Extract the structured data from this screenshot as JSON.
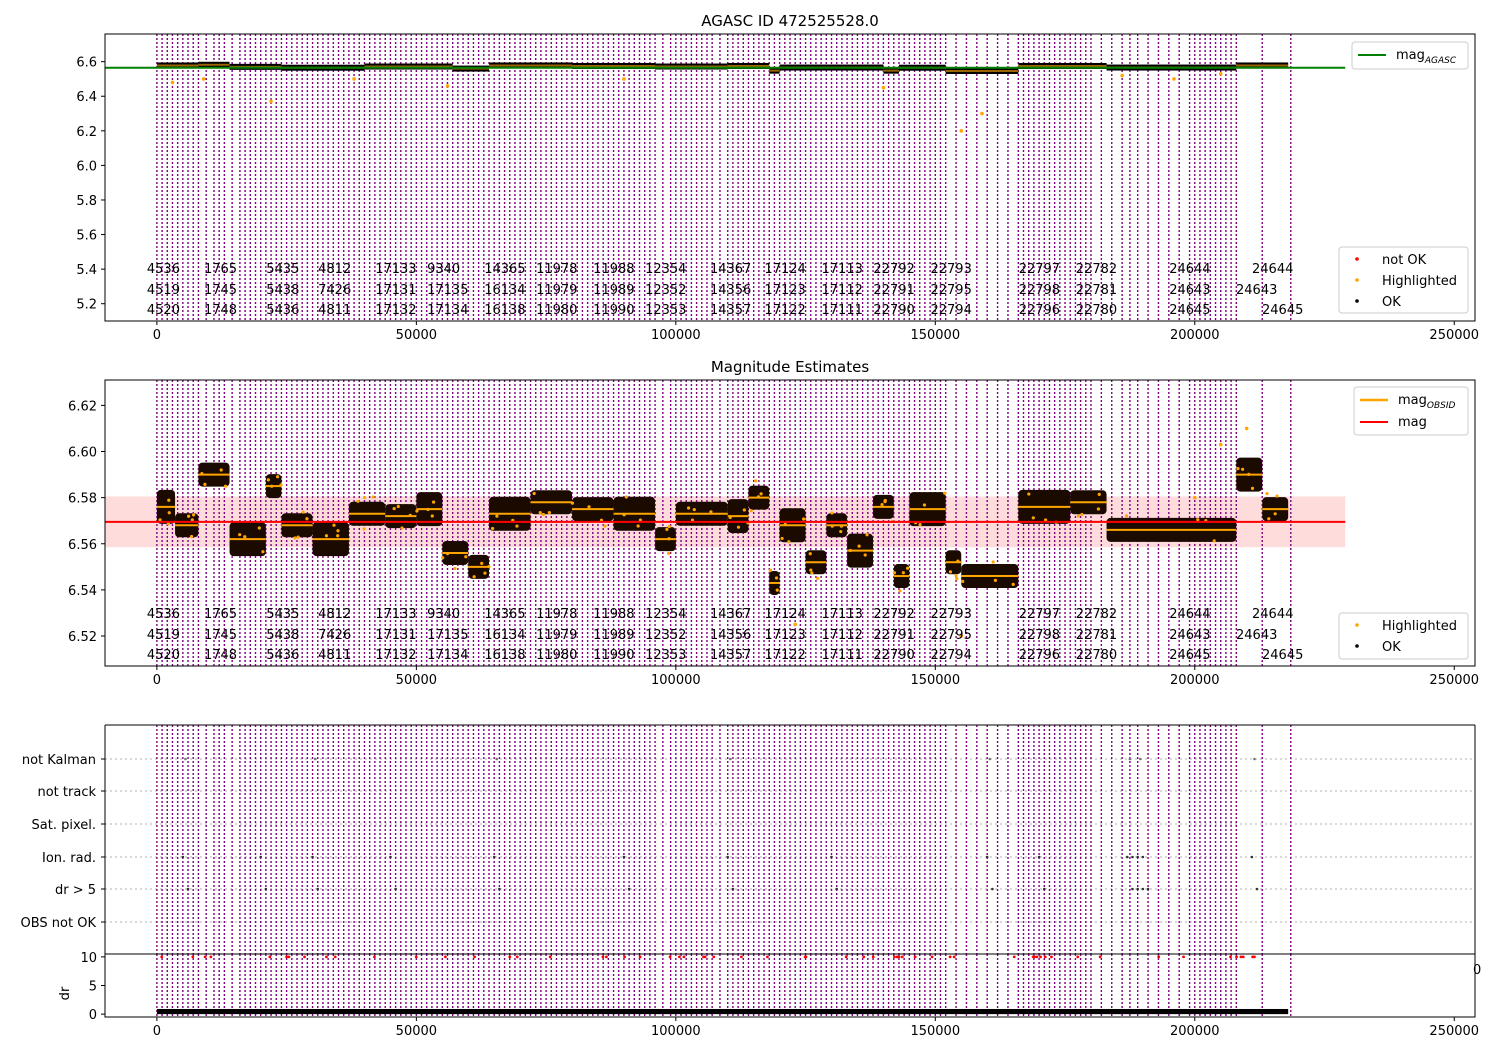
{
  "chart_data": [
    {
      "type": "scatter",
      "title": "AGASC ID 472525528.0",
      "xlim": [
        -10000,
        254000
      ],
      "ylim": [
        5.1,
        6.76
      ],
      "xticks": [
        0,
        50000,
        100000,
        150000,
        200000,
        250000
      ],
      "xtick_labels": [
        "0",
        "50000",
        "100000",
        "150000",
        "200000",
        "250000"
      ],
      "yticks": [
        5.2,
        5.4,
        5.6,
        5.8,
        6.0,
        6.2,
        6.4,
        6.6
      ],
      "ytick_labels": [
        "5.2",
        "5.4",
        "5.6",
        "5.8",
        "6.0",
        "6.2",
        "6.4",
        "6.6"
      ],
      "hline": {
        "name": "mag_AGASC",
        "y": 6.565,
        "x_range": [
          -10000,
          229000
        ],
        "color": "#008000"
      },
      "series": [
        {
          "name": "OK",
          "color": "#000000",
          "segments": [
            [
              0,
              8000,
              6.578
            ],
            [
              8000,
              14000,
              6.582
            ],
            [
              14000,
              24000,
              6.57
            ],
            [
              24000,
              40000,
              6.565
            ],
            [
              40000,
              57000,
              6.572
            ],
            [
              57000,
              64000,
              6.56
            ],
            [
              64000,
              80000,
              6.578
            ],
            [
              80000,
              96000,
              6.575
            ],
            [
              96000,
              110000,
              6.572
            ],
            [
              110000,
              118000,
              6.575
            ],
            [
              118000,
              120000,
              6.548
            ],
            [
              120000,
              140000,
              6.566
            ],
            [
              140000,
              143000,
              6.548
            ],
            [
              143000,
              152000,
              6.565
            ],
            [
              152000,
              166000,
              6.546
            ],
            [
              166000,
              183000,
              6.575
            ],
            [
              183000,
              208000,
              6.566
            ],
            [
              208000,
              218000,
              6.578
            ]
          ]
        },
        {
          "name": "Highlighted",
          "color": "#ffa500",
          "scatter": [
            [
              3000,
              6.48
            ],
            [
              9000,
              6.5
            ],
            [
              22000,
              6.37
            ],
            [
              38000,
              6.5
            ],
            [
              56000,
              6.46
            ],
            [
              90000,
              6.5
            ],
            [
              140000,
              6.45
            ],
            [
              155000,
              6.2
            ],
            [
              159000,
              6.3
            ],
            [
              186000,
              6.52
            ],
            [
              196000,
              6.5
            ],
            [
              205000,
              6.53
            ]
          ]
        },
        {
          "name": "not OK",
          "color": "#ff0000",
          "scatter": []
        }
      ],
      "obsid_labels": {
        "row1": [
          "4536",
          "1765",
          "5435",
          "4812",
          "17133",
          "9340",
          "14365",
          "11978",
          "11988",
          "12354",
          "14367",
          "17124",
          "17113",
          "22792",
          "22793",
          "22797",
          "22782",
          "24644"
        ],
        "row2": [
          "4519",
          "1745",
          "5438",
          "7426",
          "17131",
          "17135",
          "16134",
          "11979",
          "11989",
          "12352",
          "14356",
          "17123",
          "17112",
          "22791",
          "22795",
          "22798",
          "22781",
          "24643"
        ],
        "row3": [
          "4520",
          "1748",
          "5436",
          "4811",
          "17132",
          "17134",
          "16138",
          "11980",
          "11990",
          "12353",
          "14357",
          "17122",
          "17111",
          "22790",
          "22794",
          "22796",
          "22780",
          "24645"
        ],
        "tail_row1": "24644",
        "tail_row2": "24643",
        "tail_row3": "24645"
      },
      "legend": {
        "position": "top-right",
        "entries": [
          "mag_AGASC"
        ]
      },
      "legend2": {
        "position": "bottom-right",
        "entries": [
          "not OK",
          "Highlighted",
          "OK"
        ]
      }
    },
    {
      "type": "scatter",
      "title": "Magnitude Estimates",
      "xlim": [
        -10000,
        254000
      ],
      "ylim": [
        6.507,
        6.631
      ],
      "xticks": [
        0,
        50000,
        100000,
        150000,
        200000,
        250000
      ],
      "xtick_labels": [
        "0",
        "50000",
        "100000",
        "150000",
        "200000",
        "250000"
      ],
      "yticks": [
        6.52,
        6.54,
        6.56,
        6.58,
        6.6,
        6.62
      ],
      "ytick_labels": [
        "6.52",
        "6.54",
        "6.56",
        "6.58",
        "6.60",
        "6.62"
      ],
      "hline": {
        "name": "mag",
        "y": 6.5695,
        "x_range": [
          -10000,
          229000
        ],
        "color": "#ff0000"
      },
      "band": {
        "y0": 6.5585,
        "y1": 6.5805,
        "color": "#ffc0c0"
      },
      "series": [
        {
          "name": "mag_OBSID",
          "color": "#ffa500",
          "segments": [
            [
              0,
              3500,
              6.576
            ],
            [
              3500,
              8000,
              6.568
            ],
            [
              8000,
              14000,
              6.59
            ],
            [
              14000,
              21000,
              6.562
            ],
            [
              21000,
              24000,
              6.585
            ],
            [
              24000,
              30000,
              6.568
            ],
            [
              30000,
              37000,
              6.562
            ],
            [
              37000,
              44000,
              6.573
            ],
            [
              44000,
              50000,
              6.572
            ],
            [
              50000,
              55000,
              6.575
            ],
            [
              55000,
              60000,
              6.556
            ],
            [
              60000,
              64000,
              6.55
            ],
            [
              64000,
              72000,
              6.573
            ],
            [
              72000,
              80000,
              6.578
            ],
            [
              80000,
              88000,
              6.575
            ],
            [
              88000,
              96000,
              6.573
            ],
            [
              96000,
              100000,
              6.562
            ],
            [
              100000,
              110000,
              6.573
            ],
            [
              110000,
              114000,
              6.572
            ],
            [
              114000,
              118000,
              6.58
            ],
            [
              118000,
              120000,
              6.543
            ],
            [
              120000,
              125000,
              6.568
            ],
            [
              125000,
              129000,
              6.552
            ],
            [
              129000,
              133000,
              6.568
            ],
            [
              133000,
              138000,
              6.557
            ],
            [
              138000,
              142000,
              6.576
            ],
            [
              142000,
              145000,
              6.546
            ],
            [
              145000,
              152000,
              6.575
            ],
            [
              152000,
              155000,
              6.552
            ],
            [
              155000,
              166000,
              6.546
            ],
            [
              166000,
              176000,
              6.576
            ],
            [
              176000,
              183000,
              6.578
            ],
            [
              183000,
              208000,
              6.566
            ],
            [
              208000,
              213000,
              6.59
            ],
            [
              213000,
              218000,
              6.575
            ]
          ]
        },
        {
          "name": "OK",
          "color": "#000000",
          "segments": []
        },
        {
          "name": "Highlighted",
          "color": "#ffa500",
          "scatter": [
            [
              210000,
              6.61
            ],
            [
              205000,
              6.603
            ],
            [
              200000,
              6.58
            ],
            [
              123000,
              6.525
            ],
            [
              155000,
              6.52
            ]
          ]
        }
      ],
      "legend": {
        "position": "top-right",
        "entries": [
          "mag_OBSID",
          "mag"
        ]
      },
      "legend2": {
        "position": "bottom-right",
        "entries": [
          "Highlighted",
          "OK"
        ]
      }
    },
    {
      "type": "scatter",
      "title": "",
      "xlim": [
        -10000,
        254000
      ],
      "yticks_flags": [
        "not Kalman",
        "not track",
        "Sat. pixel.",
        "Ion. rad.",
        "dr > 5",
        "OBS not OK"
      ],
      "series": [
        {
          "name": "flags",
          "color": "#000000",
          "scatter": []
        }
      ]
    },
    {
      "type": "scatter",
      "title": "",
      "xlim": [
        -10000,
        254000
      ],
      "ylim": [
        -0.5,
        10.5
      ],
      "yticks": [
        0,
        5,
        10
      ],
      "ytick_labels": [
        "0",
        "5",
        "10"
      ],
      "ylabel": "dr",
      "xticks": [
        0,
        50000,
        100000,
        150000,
        200000,
        250000
      ],
      "xtick_labels": [
        "0",
        "50000",
        "100000",
        "150000",
        "200000",
        "250000"
      ],
      "stray_tick_label": "0",
      "series": [
        {
          "name": "dr",
          "color": "#000000",
          "segments": [
            [
              0,
              218000,
              0.4
            ]
          ]
        },
        {
          "name": "dr-high",
          "color": "#ff0000",
          "scatter_row": 10
        }
      ]
    }
  ],
  "obsid_boundaries": [
    0,
    1000,
    2000,
    3000,
    4000,
    5000,
    6000,
    7000,
    8000,
    9500,
    11000,
    12000,
    13000,
    14500,
    16000,
    17000,
    18000,
    19000,
    20000,
    21000,
    22000,
    23000,
    24000,
    25000,
    26000,
    27000,
    28000,
    29000,
    30000,
    31000,
    32000,
    33000,
    34000,
    35000,
    36000,
    37000,
    38000,
    39000,
    40000,
    41000,
    42000,
    43000,
    44000,
    45000,
    46000,
    47000,
    48000,
    49000,
    50000,
    51000,
    52000,
    53000,
    54000,
    55000,
    56000,
    57000,
    58000,
    59000,
    60000,
    61000,
    62000,
    63000,
    64000,
    65000,
    66000,
    67000,
    68000,
    69000,
    70000,
    71000,
    72000,
    73000,
    74000,
    75000,
    76000,
    77000,
    78000,
    79000,
    80000,
    81000,
    82000,
    83000,
    84000,
    85000,
    86000,
    87000,
    88000,
    89000,
    90000,
    91000,
    92000,
    93000,
    94000,
    95000,
    96000,
    97500,
    99000,
    100000,
    101000,
    102000,
    103000,
    104000,
    105000,
    106000,
    107000,
    108500,
    110000,
    111000,
    112000,
    113000,
    114000,
    115000,
    116000,
    117000,
    118000,
    119000,
    120000,
    121000,
    122000,
    123000,
    124000,
    125000,
    126000,
    127000,
    128000,
    129000,
    130000,
    131000,
    132000,
    133000,
    134000,
    135000,
    136000,
    137000,
    138000,
    139000,
    140000,
    141000,
    142000,
    143000,
    144000,
    145000,
    146000,
    147000,
    148000,
    149000,
    150000,
    151000,
    152000,
    154000,
    156000,
    158000,
    160000,
    162000,
    164000,
    166000,
    167000,
    168000,
    169000,
    170000,
    171000,
    172000,
    173000,
    174000,
    175000,
    176000,
    177000,
    178000,
    179000,
    180000,
    182000,
    184000,
    186000,
    187500,
    189000,
    191000,
    193000,
    195000,
    197000,
    199000,
    200000,
    201000,
    202000,
    203000,
    204000,
    205000,
    206000,
    207000,
    208000,
    213000,
    218500
  ],
  "legend_labels": {
    "mag_agasc_main": "mag",
    "mag_agasc_sub": "AGASC",
    "mag_obsid_main": "mag",
    "mag_obsid_sub": "OBSID",
    "mag": "mag",
    "not_ok": "not OK",
    "highlighted": "Highlighted",
    "ok": "OK"
  },
  "obsid_tail": {
    "row1": "24644",
    "row2": "24643",
    "row3": "24645"
  }
}
